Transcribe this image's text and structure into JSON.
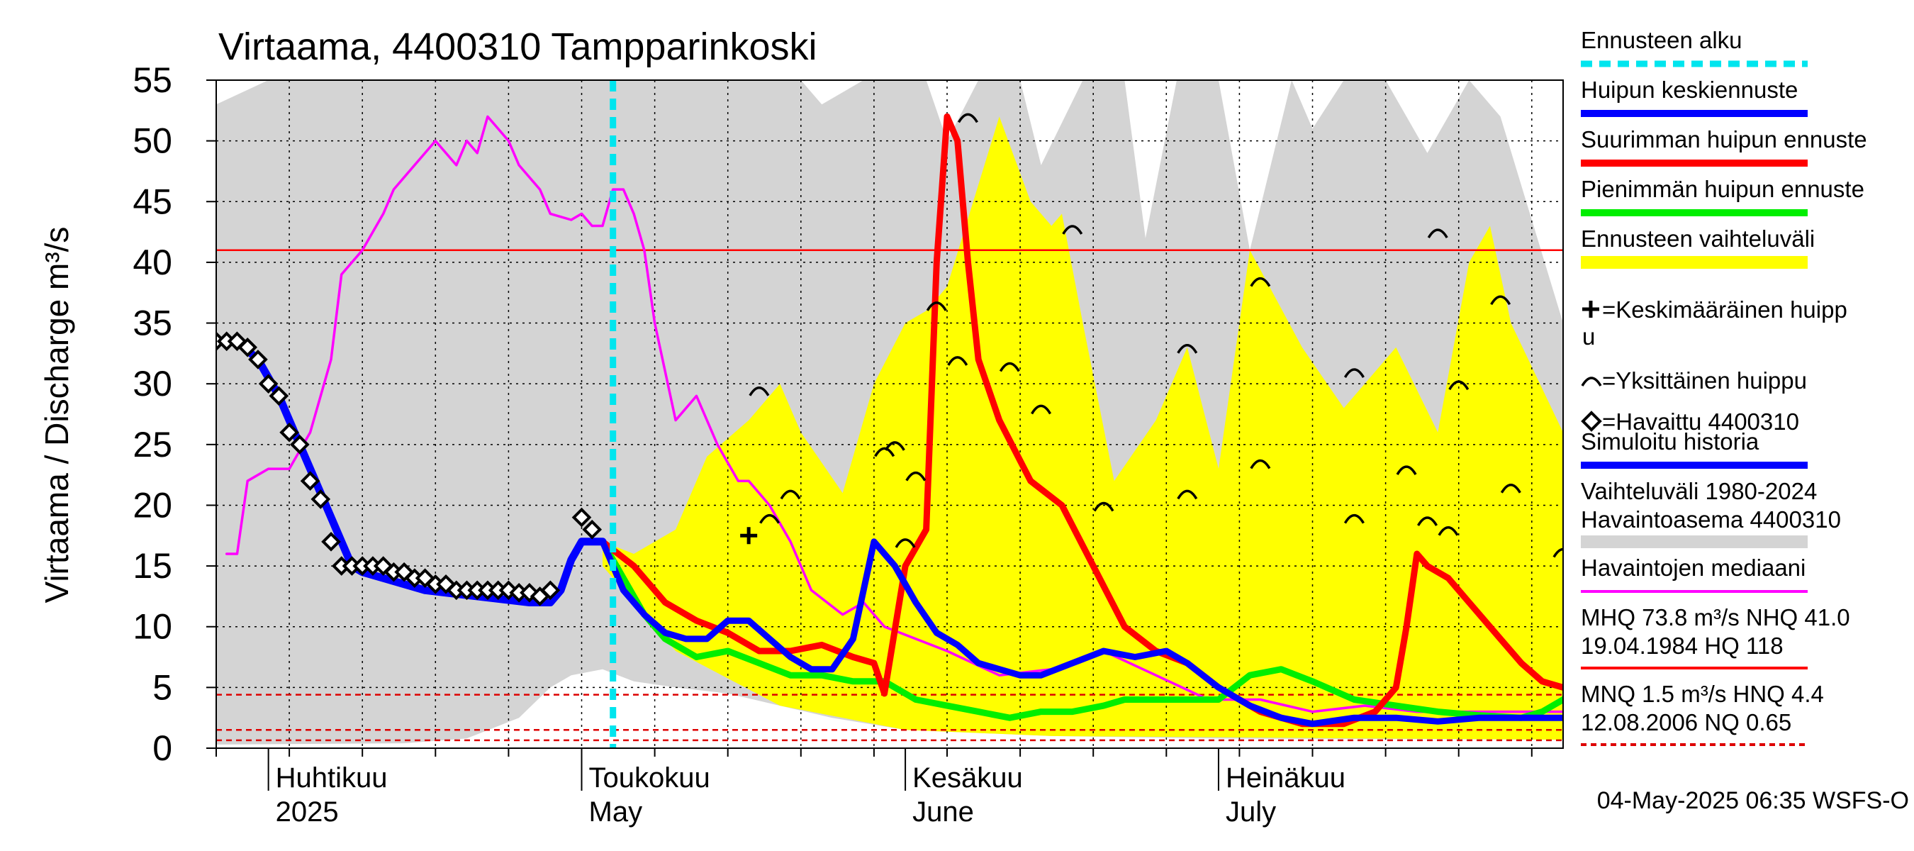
{
  "colors": {
    "forecast_start": "#00e5ee",
    "mean_peak": "#0000ff",
    "max_peak": "#ff0000",
    "min_peak": "#00ee00",
    "forecast_range": "#ffff00",
    "sim_history": "#0000ff",
    "hist_range": "#d4d4d4",
    "median": "#ff00ff",
    "mhq_line": "#ff0000",
    "mnq_line": "#dd0000",
    "observed": "#000000"
  },
  "chart_data": {
    "type": "line",
    "title": "Virtaama, 4400310 Tampparinkoski",
    "ylabel": "Virtaama / Discharge   m³/s",
    "ylim": [
      0,
      55
    ],
    "yticks": [
      0,
      5,
      10,
      15,
      20,
      25,
      30,
      35,
      40,
      45,
      50,
      55
    ],
    "xlim": [
      "2025-03-27",
      "2025-08-03"
    ],
    "grid": true,
    "month_labels": [
      {
        "x": "2025-04-01",
        "fi": "Huhtikuu",
        "en": "2025"
      },
      {
        "x": "2025-05-01",
        "fi": "Toukokuu",
        "en": "May"
      },
      {
        "x": "2025-06-01",
        "fi": "Kesäkuu",
        "en": "June"
      },
      {
        "x": "2025-07-01",
        "fi": "Heinäkuu",
        "en": "July"
      }
    ],
    "forecast_start": "2025-05-04",
    "reference_lines": [
      {
        "name": "MHQ/NHQ",
        "value": 41.0,
        "style": "solid"
      },
      {
        "name": "HNQ",
        "value": 4.4,
        "style": "dashed"
      },
      {
        "name": "MNQ",
        "value": 1.5,
        "style": "dashed"
      },
      {
        "name": "NQ",
        "value": 0.65,
        "style": "dashed"
      }
    ],
    "hist_range_upper": {
      "x": [
        "2025-03-27",
        "2025-04-01",
        "2025-04-10",
        "2025-04-20",
        "2025-04-27",
        "2025-05-03",
        "2025-05-10",
        "2025-05-18",
        "2025-05-22",
        "2025-05-24",
        "2025-05-28",
        "2025-06-03",
        "2025-06-05",
        "2025-06-08",
        "2025-06-12",
        "2025-06-14",
        "2025-06-18",
        "2025-06-22",
        "2025-06-24",
        "2025-06-27",
        "2025-07-01",
        "2025-07-04",
        "2025-07-08",
        "2025-07-10",
        "2025-07-13",
        "2025-07-17",
        "2025-07-21",
        "2025-07-25",
        "2025-07-28",
        "2025-08-03"
      ],
      "values": [
        53,
        55,
        55,
        55,
        55,
        55,
        55,
        55,
        55,
        53,
        55,
        55,
        50,
        55,
        55,
        48,
        55,
        55,
        42,
        55,
        55,
        41,
        55,
        51,
        55,
        55,
        49,
        55,
        52,
        35
      ]
    },
    "hist_range_lower": {
      "x": [
        "2025-03-27",
        "2025-04-14",
        "2025-04-20",
        "2025-04-25",
        "2025-04-28",
        "2025-04-30",
        "2025-05-03",
        "2025-05-06",
        "2025-05-10",
        "2025-05-15",
        "2025-05-20",
        "2025-05-25",
        "2025-06-01",
        "2025-06-15",
        "2025-07-01",
        "2025-08-03"
      ],
      "values": [
        0.3,
        0.4,
        0.8,
        2.5,
        5.0,
        6.0,
        6.5,
        5.5,
        5.0,
        4.5,
        3.5,
        2.5,
        1.5,
        1.0,
        0.8,
        0.7
      ]
    },
    "forecast_range_upper": {
      "x": [
        "2025-05-03",
        "2025-05-06",
        "2025-05-10",
        "2025-05-13",
        "2025-05-17",
        "2025-05-20",
        "2025-05-22",
        "2025-05-26",
        "2025-05-29",
        "2025-06-01",
        "2025-06-03",
        "2025-06-05",
        "2025-06-10",
        "2025-06-13",
        "2025-06-15",
        "2025-06-16",
        "2025-06-18",
        "2025-06-21",
        "2025-06-25",
        "2025-06-28",
        "2025-07-01",
        "2025-07-04",
        "2025-07-09",
        "2025-07-13",
        "2025-07-18",
        "2025-07-22",
        "2025-07-25",
        "2025-07-27",
        "2025-07-29",
        "2025-08-03"
      ],
      "values": [
        17,
        16,
        18,
        24,
        27,
        30,
        26,
        21,
        30,
        35,
        36,
        38,
        52,
        45,
        43,
        44,
        35,
        22,
        27,
        33,
        23,
        41,
        33,
        28,
        33,
        26,
        40,
        43,
        35,
        26
      ]
    },
    "forecast_range_lower": {
      "x": [
        "2025-05-03",
        "2025-05-10",
        "2025-05-20",
        "2025-06-01",
        "2025-06-15",
        "2025-07-01",
        "2025-07-15",
        "2025-08-03"
      ],
      "values": [
        15,
        8,
        3.5,
        1.5,
        1.0,
        0.9,
        0.8,
        0.7
      ]
    },
    "series": [
      {
        "name": "Havaintojen mediaani",
        "key": "median",
        "x": [
          "2025-03-28",
          "2025-03-29",
          "2025-03-30",
          "2025-04-01",
          "2025-04-03",
          "2025-04-05",
          "2025-04-07",
          "2025-04-08",
          "2025-04-10",
          "2025-04-12",
          "2025-04-13",
          "2025-04-15",
          "2025-04-17",
          "2025-04-19",
          "2025-04-20",
          "2025-04-21",
          "2025-04-22",
          "2025-04-23",
          "2025-04-24",
          "2025-04-25",
          "2025-04-27",
          "2025-04-28",
          "2025-04-30",
          "2025-05-01",
          "2025-05-02",
          "2025-05-03",
          "2025-05-04",
          "2025-05-05",
          "2025-05-06",
          "2025-05-07",
          "2025-05-08",
          "2025-05-10",
          "2025-05-12",
          "2025-05-14",
          "2025-05-16",
          "2025-05-17",
          "2025-05-19",
          "2025-05-21",
          "2025-05-23",
          "2025-05-26",
          "2025-05-28",
          "2025-05-30",
          "2025-06-05",
          "2025-06-10",
          "2025-06-15",
          "2025-06-20",
          "2025-06-25",
          "2025-06-30",
          "2025-07-05",
          "2025-07-10",
          "2025-07-15",
          "2025-07-20",
          "2025-07-25",
          "2025-07-30",
          "2025-08-03"
        ],
        "values": [
          16,
          16,
          22,
          23,
          23,
          26,
          32,
          39,
          41,
          44,
          46,
          48,
          50,
          48,
          50,
          49,
          52,
          51,
          50,
          48,
          46,
          44,
          43.5,
          44,
          43,
          43,
          46,
          46,
          44,
          41,
          35,
          27,
          29,
          25,
          22,
          22,
          20,
          17,
          13,
          11,
          12,
          10,
          8,
          6,
          6.5,
          8,
          6,
          4,
          4,
          3,
          3.5,
          3,
          3,
          3,
          3
        ]
      },
      {
        "name": "Pienimmän huipun ennuste",
        "key": "min_peak",
        "x": [
          "2025-05-03",
          "2025-05-05",
          "2025-05-07",
          "2025-05-09",
          "2025-05-12",
          "2025-05-15",
          "2025-05-18",
          "2025-05-21",
          "2025-05-24",
          "2025-05-27",
          "2025-05-30",
          "2025-06-02",
          "2025-06-05",
          "2025-06-08",
          "2025-06-11",
          "2025-06-14",
          "2025-06-17",
          "2025-06-20",
          "2025-06-22",
          "2025-06-25",
          "2025-06-28",
          "2025-07-01",
          "2025-07-04",
          "2025-07-07",
          "2025-07-10",
          "2025-07-14",
          "2025-07-18",
          "2025-07-22",
          "2025-07-26",
          "2025-07-30",
          "2025-08-01",
          "2025-08-03"
        ],
        "values": [
          17,
          14,
          11,
          9,
          7.5,
          8,
          7,
          6,
          6,
          5.5,
          5.5,
          4,
          3.5,
          3,
          2.5,
          3,
          3,
          3.5,
          4,
          4,
          4,
          4,
          6,
          6.5,
          5.5,
          4,
          3.5,
          3,
          2.7,
          2.5,
          3,
          4
        ]
      },
      {
        "name": "Suurimman huipun ennuste",
        "key": "max_peak",
        "x": [
          "2025-05-03",
          "2025-05-06",
          "2025-05-09",
          "2025-05-12",
          "2025-05-15",
          "2025-05-18",
          "2025-05-21",
          "2025-05-24",
          "2025-05-27",
          "2025-05-29",
          "2025-05-30",
          "2025-06-01",
          "2025-06-03",
          "2025-06-04",
          "2025-06-05",
          "2025-06-06",
          "2025-06-07",
          "2025-06-08",
          "2025-06-10",
          "2025-06-13",
          "2025-06-16",
          "2025-06-19",
          "2025-06-22",
          "2025-06-25",
          "2025-06-28",
          "2025-07-01",
          "2025-07-05",
          "2025-07-09",
          "2025-07-13",
          "2025-07-16",
          "2025-07-18",
          "2025-07-19",
          "2025-07-20",
          "2025-07-21",
          "2025-07-23",
          "2025-07-25",
          "2025-07-28",
          "2025-07-30",
          "2025-08-01",
          "2025-08-03"
        ],
        "values": [
          17,
          15,
          12,
          10.5,
          9.5,
          8,
          8,
          8.5,
          7.5,
          7,
          4.5,
          15,
          18,
          40,
          52,
          50,
          40,
          32,
          27,
          22,
          20,
          15,
          10,
          8,
          7,
          5,
          3,
          2,
          2,
          3,
          5,
          10,
          16,
          15,
          14,
          12,
          9,
          7,
          5.5,
          5
        ]
      },
      {
        "name": "Huipun keskiennuste",
        "key": "mean_peak",
        "x": [
          "2025-05-03",
          "2025-05-05",
          "2025-05-07",
          "2025-05-09",
          "2025-05-11",
          "2025-05-13",
          "2025-05-15",
          "2025-05-17",
          "2025-05-19",
          "2025-05-21",
          "2025-05-23",
          "2025-05-25",
          "2025-05-27",
          "2025-05-29",
          "2025-05-31",
          "2025-06-02",
          "2025-06-04",
          "2025-06-06",
          "2025-06-08",
          "2025-06-10",
          "2025-06-12",
          "2025-06-14",
          "2025-06-17",
          "2025-06-20",
          "2025-06-23",
          "2025-06-26",
          "2025-06-28",
          "2025-07-01",
          "2025-07-04",
          "2025-07-07",
          "2025-07-10",
          "2025-07-14",
          "2025-07-18",
          "2025-07-22",
          "2025-07-26",
          "2025-07-30",
          "2025-08-03"
        ],
        "values": [
          17,
          13,
          11,
          9.5,
          9,
          9,
          10.5,
          10.5,
          9,
          7.5,
          6.5,
          6.5,
          9,
          17,
          15,
          12,
          9.5,
          8.5,
          7,
          6.5,
          6,
          6,
          7,
          8,
          7.5,
          8,
          7,
          5,
          3.5,
          2.5,
          2,
          2.5,
          2.5,
          2.2,
          2.5,
          2.5,
          2.5
        ]
      },
      {
        "name": "Simuloitu historia",
        "key": "sim_history",
        "x": [
          "2025-03-27",
          "2025-03-29",
          "2025-03-31",
          "2025-04-02",
          "2025-04-04",
          "2025-04-06",
          "2025-04-08",
          "2025-04-09",
          "2025-04-10",
          "2025-04-12",
          "2025-04-16",
          "2025-04-21",
          "2025-04-26",
          "2025-04-28",
          "2025-04-29",
          "2025-04-30",
          "2025-05-01",
          "2025-05-02",
          "2025-05-03"
        ],
        "values": [
          33.5,
          33.5,
          32,
          29,
          25,
          21,
          17,
          15,
          14.5,
          14,
          13,
          12.5,
          12,
          12,
          13,
          15.5,
          17,
          17,
          17
        ]
      }
    ],
    "observed": {
      "name": "Havaittu 4400310",
      "x": [
        "2025-03-27",
        "2025-03-28",
        "2025-03-29",
        "2025-03-30",
        "2025-03-31",
        "2025-04-01",
        "2025-04-02",
        "2025-04-03",
        "2025-04-04",
        "2025-04-05",
        "2025-04-06",
        "2025-04-07",
        "2025-04-08",
        "2025-04-09",
        "2025-04-10",
        "2025-04-11",
        "2025-04-12",
        "2025-04-13",
        "2025-04-14",
        "2025-04-15",
        "2025-04-16",
        "2025-04-17",
        "2025-04-18",
        "2025-04-19",
        "2025-04-20",
        "2025-04-21",
        "2025-04-22",
        "2025-04-23",
        "2025-04-24",
        "2025-04-25",
        "2025-04-26",
        "2025-04-27",
        "2025-04-28",
        "2025-05-01",
        "2025-05-02"
      ],
      "values": [
        33.5,
        33.5,
        33.5,
        33,
        32,
        30,
        29,
        26,
        25,
        22,
        20.5,
        17,
        15,
        15,
        15,
        15,
        15,
        14.5,
        14.5,
        14,
        14,
        13.5,
        13.5,
        13,
        13,
        13,
        13,
        13,
        13,
        12.8,
        12.8,
        12.5,
        13,
        19,
        18
      ]
    },
    "mean_peak_marker": {
      "x": "2025-05-17",
      "value": 17.5
    },
    "individual_peaks": [
      {
        "x": "2025-05-18",
        "value": 29.5
      },
      {
        "x": "2025-05-19",
        "value": 19
      },
      {
        "x": "2025-05-21",
        "value": 21
      },
      {
        "x": "2025-05-30",
        "value": 24.5
      },
      {
        "x": "2025-05-31",
        "value": 25
      },
      {
        "x": "2025-06-01",
        "value": 17
      },
      {
        "x": "2025-06-02",
        "value": 22.5
      },
      {
        "x": "2025-06-04",
        "value": 36.5
      },
      {
        "x": "2025-06-06",
        "value": 32
      },
      {
        "x": "2025-06-07",
        "value": 52
      },
      {
        "x": "2025-06-11",
        "value": 31.5
      },
      {
        "x": "2025-06-14",
        "value": 28
      },
      {
        "x": "2025-06-17",
        "value": 42.8
      },
      {
        "x": "2025-06-20",
        "value": 20
      },
      {
        "x": "2025-06-28",
        "value": 33
      },
      {
        "x": "2025-06-28",
        "value": 21
      },
      {
        "x": "2025-07-05",
        "value": 38.5
      },
      {
        "x": "2025-07-05",
        "value": 23.5
      },
      {
        "x": "2025-07-14",
        "value": 31
      },
      {
        "x": "2025-07-14",
        "value": 19
      },
      {
        "x": "2025-07-19",
        "value": 23
      },
      {
        "x": "2025-07-21",
        "value": 18.8
      },
      {
        "x": "2025-07-22",
        "value": 42.5
      },
      {
        "x": "2025-07-23",
        "value": 18
      },
      {
        "x": "2025-07-24",
        "value": 30
      },
      {
        "x": "2025-07-28",
        "value": 37
      },
      {
        "x": "2025-07-29",
        "value": 21.5
      },
      {
        "x": "2025-08-03",
        "value": 16.2
      }
    ]
  },
  "legend": [
    {
      "key": "forecast_start",
      "kind": "dash",
      "label": "Ennusteen alku"
    },
    {
      "key": "mean_peak",
      "kind": "thick",
      "label": "Huipun keskiennuste"
    },
    {
      "key": "max_peak",
      "kind": "thick",
      "label": "Suurimman huipun ennuste"
    },
    {
      "key": "min_peak",
      "kind": "thick",
      "label": "Pienimmän huipun ennuste"
    },
    {
      "key": "forecast_range",
      "kind": "band",
      "label": "Ennusteen vaihteluväli"
    },
    {
      "key": "plus",
      "kind": "plus",
      "label": "=Keskimääräinen huipp",
      "label2": "u"
    },
    {
      "key": "arc",
      "kind": "arc",
      "label": "=Yksittäinen huippu"
    },
    {
      "key": "diamond",
      "kind": "diamond",
      "label": "=Havaittu 4400310"
    },
    {
      "key": "sim_history",
      "kind": "thick",
      "label": "Simuloitu historia"
    },
    {
      "key": "hist_range",
      "kind": "band",
      "label": "Vaihteluväli 1980-2024",
      "label2": " Havaintoasema 4400310"
    },
    {
      "key": "median",
      "kind": "thin",
      "label": "Havaintojen mediaani"
    },
    {
      "key": "mhq_line",
      "kind": "thin",
      "label": "MHQ 73.8 m³/s NHQ 41.0",
      "label2": "19.04.1984 HQ  118"
    },
    {
      "key": "mnq_line",
      "kind": "dashthin",
      "label": "MNQ  1.5 m³/s HNQ  4.4",
      "label2": "12.08.2006 NQ 0.65"
    }
  ],
  "footer": "04-May-2025 06:35 WSFS-O"
}
